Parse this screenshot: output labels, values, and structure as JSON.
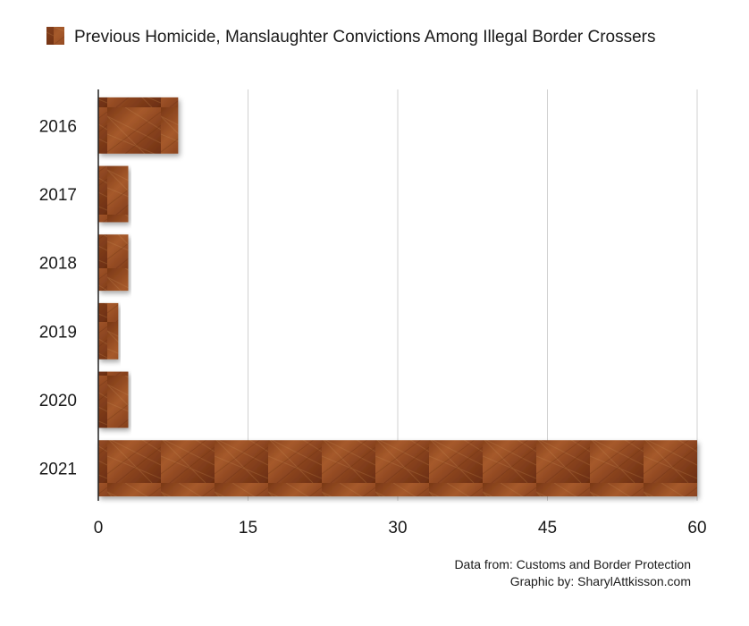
{
  "chart_data": {
    "type": "bar",
    "orientation": "horizontal",
    "categories": [
      "2016",
      "2017",
      "2018",
      "2019",
      "2020",
      "2021"
    ],
    "series": [
      {
        "name": "Previous Homicide, Manslaughter Convictions Among Illegal Border Crossers",
        "values": [
          8,
          3,
          3,
          2,
          3,
          60
        ],
        "color": "#9a4e22"
      }
    ],
    "xlim": [
      0,
      60
    ],
    "xticks": [
      0,
      15,
      30,
      45,
      60
    ],
    "grid": true,
    "legend_position": "top"
  },
  "footer": {
    "source": "Data from: Customs and Border Protection",
    "credit": "Graphic by: SharylAttkisson.com"
  },
  "colors": {
    "bar_dark": "#6e2f12",
    "bar_mid": "#9a4e22",
    "bar_light": "#c07a45",
    "grid": "#d0d0d0",
    "axis": "#222222"
  }
}
